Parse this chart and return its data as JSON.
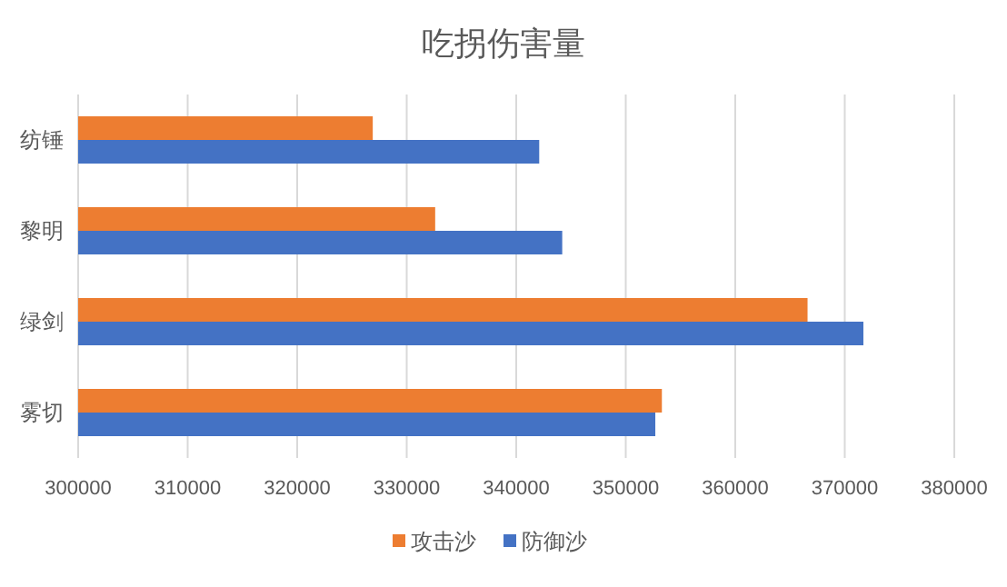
{
  "chart_data": {
    "type": "bar",
    "orientation": "horizontal",
    "title": "吃拐伤害量",
    "categories": [
      "纺锤",
      "黎明",
      "绿剑",
      "雾切"
    ],
    "series": [
      {
        "name": "攻击沙",
        "color": "#ed7d31",
        "values": [
          326900,
          332600,
          366600,
          353300
        ]
      },
      {
        "name": "防御沙",
        "color": "#4472c4",
        "values": [
          342100,
          344200,
          371700,
          352700
        ]
      }
    ],
    "xlim": [
      300000,
      380000
    ],
    "xticks": [
      300000,
      310000,
      320000,
      330000,
      340000,
      350000,
      360000,
      370000,
      380000
    ],
    "grid": "x",
    "legend": "bottom"
  }
}
